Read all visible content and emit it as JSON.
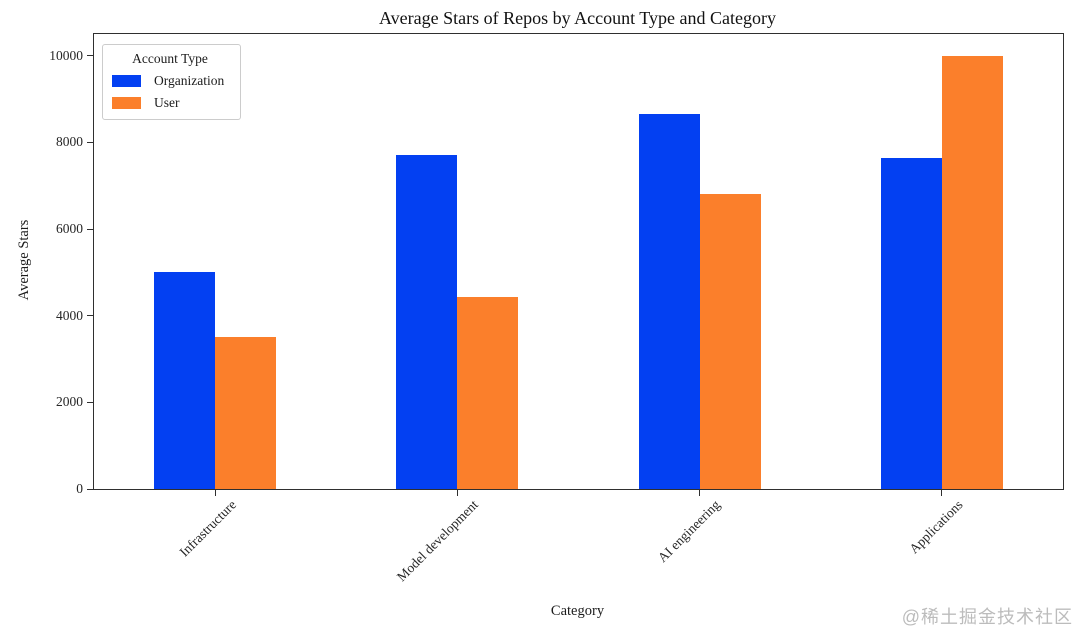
{
  "watermark": "@稀土掘金技术社区",
  "chart_data": {
    "type": "bar",
    "title": "Average Stars of Repos by Account Type and Category",
    "xlabel": "Category",
    "ylabel": "Average Stars",
    "categories": [
      "Infrastructure",
      "Model development",
      "AI engineering",
      "Applications"
    ],
    "series": [
      {
        "name": "Organization",
        "color": "#0340f2",
        "values": [
          5000,
          7700,
          8650,
          7650
        ]
      },
      {
        "name": "User",
        "color": "#fb7f2b",
        "values": [
          3500,
          4430,
          6800,
          10000
        ]
      }
    ],
    "ylim": [
      0,
      10500
    ],
    "yticks": [
      0,
      2000,
      4000,
      6000,
      8000,
      10000
    ],
    "legend": {
      "title": "Account Type",
      "position": "upper left"
    },
    "grid": false,
    "xtick_rotation": 45
  }
}
